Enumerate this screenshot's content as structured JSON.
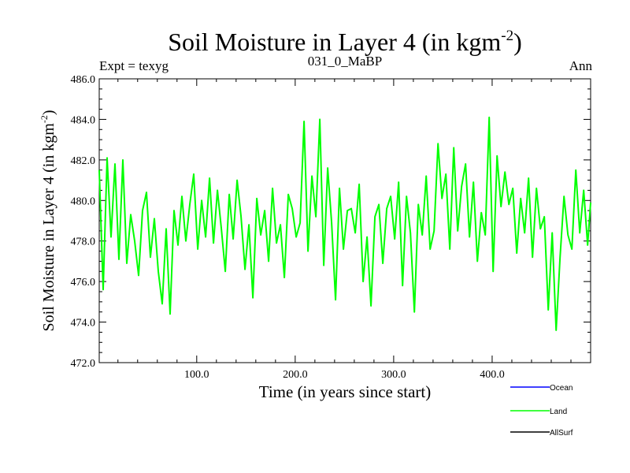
{
  "chart_data": {
    "type": "line",
    "title_main": "Soil Moisture in Layer 4 (in kgm",
    "title_sup": "-2",
    "title_end": ")",
    "subtitle_left": "Expt = texyg",
    "subtitle_center": "031_0_MaBP",
    "subtitle_right": "Ann",
    "xlabel": "Time (in years since start)",
    "ylabel_main": "Soil Moisture in Layer 4 (in kgm",
    "ylabel_sup": "-2",
    "ylabel_end": ")",
    "xlim": [
      1,
      500
    ],
    "ylim": [
      472.0,
      486.0
    ],
    "xticks": [
      100,
      200,
      300,
      400
    ],
    "xtick_labels": [
      "100.0",
      "200.0",
      "300.0",
      "400.0"
    ],
    "yticks": [
      472,
      474,
      476,
      478,
      480,
      482,
      484,
      486
    ],
    "ytick_labels": [
      "472.0",
      "474.0",
      "476.0",
      "478.0",
      "480.0",
      "482.0",
      "484.0",
      "486.0"
    ],
    "grid": false,
    "legend_position": "bottom-right",
    "series": [
      {
        "name": "Ocean",
        "color": "#0000ff",
        "x": [],
        "y": []
      },
      {
        "name": "Land",
        "color": "#00ff00",
        "x": [
          1,
          5,
          9,
          13,
          17,
          21,
          25,
          29,
          33,
          37,
          41,
          45,
          49,
          53,
          57,
          61,
          65,
          69,
          73,
          77,
          81,
          85,
          89,
          93,
          97,
          101,
          105,
          109,
          113,
          117,
          121,
          125,
          129,
          133,
          137,
          141,
          145,
          149,
          153,
          157,
          161,
          165,
          169,
          173,
          177,
          181,
          185,
          189,
          193,
          197,
          201,
          205,
          209,
          213,
          217,
          221,
          225,
          229,
          233,
          237,
          241,
          245,
          249,
          253,
          257,
          261,
          265,
          269,
          273,
          277,
          281,
          285,
          289,
          293,
          297,
          301,
          305,
          309,
          313,
          317,
          321,
          325,
          329,
          333,
          337,
          341,
          345,
          349,
          353,
          357,
          361,
          365,
          369,
          373,
          377,
          381,
          385,
          389,
          393,
          397,
          401,
          405,
          409,
          413,
          417,
          421,
          425,
          429,
          433,
          437,
          441,
          445,
          449,
          453,
          457,
          461,
          465,
          469,
          473,
          477,
          481,
          485,
          489,
          493,
          497,
          500
        ],
        "y": [
          481.5,
          475.6,
          482.1,
          478.2,
          481.8,
          477.1,
          482.0,
          476.9,
          479.3,
          478.0,
          476.3,
          479.5,
          480.4,
          477.2,
          479.1,
          476.5,
          474.9,
          478.6,
          474.4,
          479.5,
          477.8,
          480.2,
          478.0,
          479.8,
          481.3,
          477.6,
          480.0,
          478.2,
          481.1,
          477.9,
          480.5,
          478.6,
          476.5,
          480.3,
          478.1,
          481.0,
          479.2,
          476.6,
          478.8,
          475.2,
          480.1,
          478.3,
          479.5,
          477.0,
          480.6,
          477.9,
          478.8,
          476.2,
          480.3,
          479.6,
          478.2,
          478.9,
          483.9,
          477.5,
          481.2,
          479.2,
          484.0,
          476.8,
          481.6,
          478.9,
          475.1,
          480.6,
          477.6,
          479.5,
          479.6,
          478.4,
          480.8,
          476.0,
          478.2,
          474.8,
          479.2,
          479.8,
          476.9,
          479.6,
          480.2,
          478.1,
          480.9,
          475.8,
          480.2,
          478.4,
          474.5,
          479.8,
          478.3,
          481.2,
          477.6,
          478.5,
          482.8,
          480.1,
          481.3,
          477.6,
          482.6,
          478.5,
          480.7,
          481.8,
          478.2,
          480.9,
          477.0,
          479.4,
          478.3,
          484.1,
          476.5,
          482.2,
          479.7,
          481.4,
          479.8,
          480.6,
          477.4,
          480.1,
          478.4,
          481.1,
          477.2,
          480.6,
          478.6,
          479.2,
          474.6,
          478.4,
          473.6,
          477.2,
          480.2,
          478.3,
          477.6,
          481.5,
          478.4,
          480.5,
          477.8,
          479.9
        ]
      },
      {
        "name": "AllSurf",
        "color": "#000000",
        "x": [],
        "y": []
      }
    ]
  }
}
